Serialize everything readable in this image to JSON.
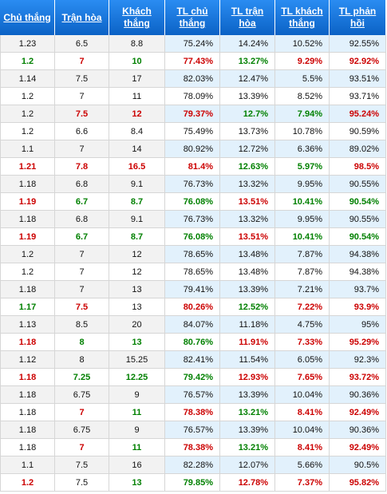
{
  "headers": [
    "Chủ thắng",
    "Trận hòa",
    "Khách thắng",
    "TL chủ thắng",
    "TL trận hòa",
    "TL khách thắng",
    "TL phản hồi"
  ],
  "colors": {
    "header_bg": "#0f6fd6",
    "red": "#cc0000",
    "green": "#008000",
    "alt_row": "#e2f1fc"
  },
  "rows": [
    {
      "cells": [
        "1.23",
        "6.5",
        "8.8",
        "75.24%",
        "14.24%",
        "10.52%",
        "92.55%"
      ],
      "colors": [
        "",
        "",
        "",
        "",
        "",
        "",
        ""
      ]
    },
    {
      "cells": [
        "1.2",
        "7",
        "10",
        "77.43%",
        "13.27%",
        "9.29%",
        "92.92%"
      ],
      "colors": [
        "green",
        "red",
        "green",
        "red",
        "green",
        "red",
        "red"
      ]
    },
    {
      "cells": [
        "1.14",
        "7.5",
        "17",
        "82.03%",
        "12.47%",
        "5.5%",
        "93.51%"
      ],
      "colors": [
        "",
        "",
        "",
        "",
        "",
        "",
        ""
      ]
    },
    {
      "cells": [
        "1.2",
        "7",
        "11",
        "78.09%",
        "13.39%",
        "8.52%",
        "93.71%"
      ],
      "colors": [
        "",
        "",
        "",
        "",
        "",
        "",
        ""
      ]
    },
    {
      "cells": [
        "1.2",
        "7.5",
        "12",
        "79.37%",
        "12.7%",
        "7.94%",
        "95.24%"
      ],
      "colors": [
        "",
        "red",
        "red",
        "red",
        "green",
        "green",
        "red"
      ]
    },
    {
      "cells": [
        "1.2",
        "6.6",
        "8.4",
        "75.49%",
        "13.73%",
        "10.78%",
        "90.59%"
      ],
      "colors": [
        "",
        "",
        "",
        "",
        "",
        "",
        ""
      ]
    },
    {
      "cells": [
        "1.1",
        "7",
        "14",
        "80.92%",
        "12.72%",
        "6.36%",
        "89.02%"
      ],
      "colors": [
        "",
        "",
        "",
        "",
        "",
        "",
        ""
      ]
    },
    {
      "cells": [
        "1.21",
        "7.8",
        "16.5",
        "81.4%",
        "12.63%",
        "5.97%",
        "98.5%"
      ],
      "colors": [
        "red",
        "red",
        "red",
        "red",
        "green",
        "green",
        "red"
      ]
    },
    {
      "cells": [
        "1.18",
        "6.8",
        "9.1",
        "76.73%",
        "13.32%",
        "9.95%",
        "90.55%"
      ],
      "colors": [
        "",
        "",
        "",
        "",
        "",
        "",
        ""
      ]
    },
    {
      "cells": [
        "1.19",
        "6.7",
        "8.7",
        "76.08%",
        "13.51%",
        "10.41%",
        "90.54%"
      ],
      "colors": [
        "red",
        "green",
        "green",
        "green",
        "red",
        "green",
        "green"
      ]
    },
    {
      "cells": [
        "1.18",
        "6.8",
        "9.1",
        "76.73%",
        "13.32%",
        "9.95%",
        "90.55%"
      ],
      "colors": [
        "",
        "",
        "",
        "",
        "",
        "",
        ""
      ]
    },
    {
      "cells": [
        "1.19",
        "6.7",
        "8.7",
        "76.08%",
        "13.51%",
        "10.41%",
        "90.54%"
      ],
      "colors": [
        "red",
        "green",
        "green",
        "green",
        "red",
        "green",
        "green"
      ]
    },
    {
      "cells": [
        "1.2",
        "7",
        "12",
        "78.65%",
        "13.48%",
        "7.87%",
        "94.38%"
      ],
      "colors": [
        "",
        "",
        "",
        "",
        "",
        "",
        ""
      ]
    },
    {
      "cells": [
        "1.2",
        "7",
        "12",
        "78.65%",
        "13.48%",
        "7.87%",
        "94.38%"
      ],
      "colors": [
        "",
        "",
        "",
        "",
        "",
        "",
        ""
      ]
    },
    {
      "cells": [
        "1.18",
        "7",
        "13",
        "79.41%",
        "13.39%",
        "7.21%",
        "93.7%"
      ],
      "colors": [
        "",
        "",
        "",
        "",
        "",
        "",
        ""
      ]
    },
    {
      "cells": [
        "1.17",
        "7.5",
        "13",
        "80.26%",
        "12.52%",
        "7.22%",
        "93.9%"
      ],
      "colors": [
        "green",
        "red",
        "",
        "red",
        "green",
        "red",
        "red"
      ]
    },
    {
      "cells": [
        "1.13",
        "8.5",
        "20",
        "84.07%",
        "11.18%",
        "4.75%",
        "95%"
      ],
      "colors": [
        "",
        "",
        "",
        "",
        "",
        "",
        ""
      ]
    },
    {
      "cells": [
        "1.18",
        "8",
        "13",
        "80.76%",
        "11.91%",
        "7.33%",
        "95.29%"
      ],
      "colors": [
        "red",
        "green",
        "green",
        "green",
        "red",
        "red",
        "red"
      ]
    },
    {
      "cells": [
        "1.12",
        "8",
        "15.25",
        "82.41%",
        "11.54%",
        "6.05%",
        "92.3%"
      ],
      "colors": [
        "",
        "",
        "",
        "",
        "",
        "",
        ""
      ]
    },
    {
      "cells": [
        "1.18",
        "7.25",
        "12.25",
        "79.42%",
        "12.93%",
        "7.65%",
        "93.72%"
      ],
      "colors": [
        "red",
        "green",
        "green",
        "green",
        "red",
        "red",
        "red"
      ]
    },
    {
      "cells": [
        "1.18",
        "6.75",
        "9",
        "76.57%",
        "13.39%",
        "10.04%",
        "90.36%"
      ],
      "colors": [
        "",
        "",
        "",
        "",
        "",
        "",
        ""
      ]
    },
    {
      "cells": [
        "1.18",
        "7",
        "11",
        "78.38%",
        "13.21%",
        "8.41%",
        "92.49%"
      ],
      "colors": [
        "",
        "red",
        "green",
        "red",
        "green",
        "red",
        "red"
      ]
    },
    {
      "cells": [
        "1.18",
        "6.75",
        "9",
        "76.57%",
        "13.39%",
        "10.04%",
        "90.36%"
      ],
      "colors": [
        "",
        "",
        "",
        "",
        "",
        "",
        ""
      ]
    },
    {
      "cells": [
        "1.18",
        "7",
        "11",
        "78.38%",
        "13.21%",
        "8.41%",
        "92.49%"
      ],
      "colors": [
        "",
        "red",
        "green",
        "red",
        "green",
        "red",
        "red"
      ]
    },
    {
      "cells": [
        "1.1",
        "7.5",
        "16",
        "82.28%",
        "12.07%",
        "5.66%",
        "90.5%"
      ],
      "colors": [
        "",
        "",
        "",
        "",
        "",
        "",
        ""
      ]
    },
    {
      "cells": [
        "1.2",
        "7.5",
        "13",
        "79.85%",
        "12.78%",
        "7.37%",
        "95.82%"
      ],
      "colors": [
        "red",
        "",
        "green",
        "green",
        "red",
        "red",
        "red"
      ]
    }
  ]
}
